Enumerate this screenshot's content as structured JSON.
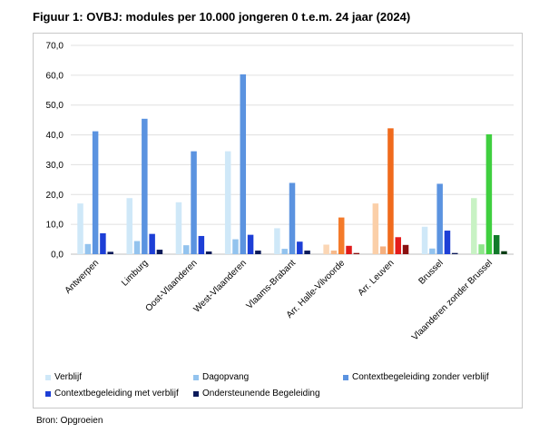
{
  "title": "Figuur 1: OVBJ: modules per 10.000 jongeren 0 t.e.m. 24 jaar (2024)",
  "source": "Bron: Opgroeien",
  "chart_data": {
    "type": "bar",
    "categories": [
      "Antwerpen",
      "Limburg",
      "Oost-Vlaanderen",
      "West-Vlaanderen",
      "Vlaams-Brabant",
      "Arr. Halle-Vilvoorde",
      "Arr. Leuven",
      "Brussel",
      "Vlaanderen zonder Brussel"
    ],
    "ylim": [
      0,
      70
    ],
    "yticks": [
      "0,0",
      "10,0",
      "20,0",
      "30,0",
      "40,0",
      "50,0",
      "60,0",
      "70,0"
    ],
    "grid": true,
    "legend_position": "bottom",
    "series": [
      {
        "name": "Verblijf",
        "values": [
          17.0,
          18.8,
          17.4,
          34.5,
          8.7,
          3.2,
          17.0,
          9.2,
          18.8
        ],
        "color": "#cfe8f8"
      },
      {
        "name": "Dagopvang",
        "values": [
          3.4,
          4.4,
          3.0,
          5.0,
          1.8,
          1.2,
          2.6,
          1.9,
          3.3
        ],
        "color": "#93c3ee"
      },
      {
        "name": "Contextbegeleiding zonder verblijf",
        "values": [
          41.2,
          45.4,
          34.5,
          60.3,
          23.9,
          12.3,
          42.2,
          23.6,
          40.2
        ],
        "color": "#5b93e0"
      },
      {
        "name": "Contextbegeleiding met verblijf",
        "values": [
          7.0,
          6.8,
          6.1,
          6.5,
          4.2,
          2.8,
          5.7,
          7.9,
          6.4
        ],
        "color": "#1d3fd6"
      },
      {
        "name": "Ondersteunende Begeleiding",
        "values": [
          0.8,
          1.5,
          0.9,
          1.2,
          1.2,
          0.4,
          3.1,
          0.4,
          1.0
        ],
        "color": "#0b1a5a"
      }
    ],
    "category_overrides": {
      "Arr. Halle-Vilvoorde": [
        "#fbd6b5",
        "#f7b98a",
        "#f47a2a",
        "#e01a1a",
        "#8a1212"
      ],
      "Arr. Leuven": [
        "#fbcfa8",
        "#f5b07f",
        "#f06a1c",
        "#e41b1b",
        "#8a1010"
      ],
      "Vlaanderen zonder Brussel": [
        "#c8f2c4",
        "#8ee58a",
        "#3fcf3f",
        "#117a2a",
        "#0b3d14"
      ]
    }
  }
}
